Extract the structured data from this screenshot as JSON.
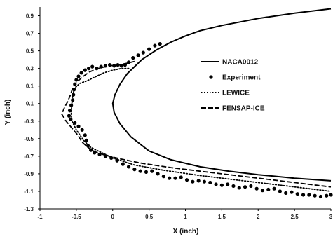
{
  "chart_data": {
    "type": "line",
    "xlabel": "X (inch)",
    "ylabel": "Y (inch)",
    "xlim": [
      -1,
      3
    ],
    "ylim": [
      -1.3,
      1.0
    ],
    "xticks": [
      "-1",
      "-0.5",
      "0",
      "0.5",
      "1",
      "1.5",
      "2",
      "2.5",
      "3"
    ],
    "yticks": [
      "0.9",
      "0.7",
      "0.5",
      "0.3",
      "0.1",
      "-0.1",
      "-0.3",
      "-0.5",
      "-0.7",
      "-0.9",
      "-1.1",
      "-1.3"
    ],
    "grid": false,
    "legend_position": "right",
    "series": [
      {
        "name": "NACA0012",
        "style": "solid",
        "color": "#000000",
        "points": [
          [
            3.0,
            0.98
          ],
          [
            2.5,
            0.93
          ],
          [
            2.0,
            0.87
          ],
          [
            1.5,
            0.79
          ],
          [
            1.2,
            0.73
          ],
          [
            1.0,
            0.67
          ],
          [
            0.8,
            0.6
          ],
          [
            0.6,
            0.51
          ],
          [
            0.4,
            0.4
          ],
          [
            0.3,
            0.32
          ],
          [
            0.2,
            0.24
          ],
          [
            0.1,
            0.12
          ],
          [
            0.03,
            0.0
          ],
          [
            0.0,
            -0.1
          ],
          [
            0.02,
            -0.2
          ],
          [
            0.1,
            -0.33
          ],
          [
            0.25,
            -0.48
          ],
          [
            0.5,
            -0.64
          ],
          [
            0.8,
            -0.74
          ],
          [
            1.2,
            -0.82
          ],
          [
            1.6,
            -0.87
          ],
          [
            2.0,
            -0.91
          ],
          [
            2.5,
            -0.95
          ],
          [
            3.0,
            -0.98
          ]
        ]
      },
      {
        "name": "Experiment",
        "style": "markers",
        "color": "#000000",
        "points": [
          [
            0.65,
            0.58
          ],
          [
            0.58,
            0.56
          ],
          [
            0.5,
            0.52
          ],
          [
            0.42,
            0.48
          ],
          [
            0.35,
            0.45
          ],
          [
            0.28,
            0.42
          ],
          [
            0.22,
            0.37
          ],
          [
            0.17,
            0.34
          ],
          [
            0.12,
            0.33
          ],
          [
            0.07,
            0.34
          ],
          [
            0.02,
            0.33
          ],
          [
            -0.04,
            0.34
          ],
          [
            -0.1,
            0.33
          ],
          [
            -0.16,
            0.32
          ],
          [
            -0.22,
            0.3
          ],
          [
            -0.28,
            0.32
          ],
          [
            -0.33,
            0.3
          ],
          [
            -0.38,
            0.28
          ],
          [
            -0.43,
            0.25
          ],
          [
            -0.47,
            0.21
          ],
          [
            -0.5,
            0.17
          ],
          [
            -0.52,
            0.12
          ],
          [
            -0.53,
            0.06
          ],
          [
            -0.54,
            0.0
          ],
          [
            -0.55,
            -0.06
          ],
          [
            -0.57,
            -0.12
          ],
          [
            -0.59,
            -0.18
          ],
          [
            -0.6,
            -0.24
          ],
          [
            -0.58,
            -0.28
          ],
          [
            -0.52,
            -0.32
          ],
          [
            -0.47,
            -0.36
          ],
          [
            -0.42,
            -0.4
          ],
          [
            -0.38,
            -0.46
          ],
          [
            -0.36,
            -0.52
          ],
          [
            -0.34,
            -0.58
          ],
          [
            -0.3,
            -0.63
          ],
          [
            -0.25,
            -0.66
          ],
          [
            -0.18,
            -0.68
          ],
          [
            -0.1,
            -0.7
          ],
          [
            -0.02,
            -0.72
          ],
          [
            0.06,
            -0.75
          ],
          [
            0.14,
            -0.79
          ],
          [
            0.22,
            -0.82
          ],
          [
            0.3,
            -0.85
          ],
          [
            0.38,
            -0.87
          ],
          [
            0.46,
            -0.88
          ],
          [
            0.54,
            -0.87
          ],
          [
            0.62,
            -0.9
          ],
          [
            0.7,
            -0.93
          ],
          [
            0.78,
            -0.95
          ],
          [
            0.86,
            -0.95
          ],
          [
            0.94,
            -0.94
          ],
          [
            1.02,
            -0.97
          ],
          [
            1.1,
            -0.99
          ],
          [
            1.18,
            -0.98
          ],
          [
            1.26,
            -0.99
          ],
          [
            1.34,
            -1.0
          ],
          [
            1.42,
            -1.02
          ],
          [
            1.5,
            -1.03
          ],
          [
            1.58,
            -1.02
          ],
          [
            1.66,
            -1.04
          ],
          [
            1.74,
            -1.06
          ],
          [
            1.82,
            -1.05
          ],
          [
            1.9,
            -1.04
          ],
          [
            1.98,
            -1.07
          ],
          [
            2.06,
            -1.09
          ],
          [
            2.14,
            -1.08
          ],
          [
            2.22,
            -1.07
          ],
          [
            2.3,
            -1.1
          ],
          [
            2.38,
            -1.12
          ],
          [
            2.46,
            -1.11
          ],
          [
            2.54,
            -1.13
          ],
          [
            2.62,
            -1.14
          ],
          [
            2.7,
            -1.14
          ],
          [
            2.78,
            -1.15
          ],
          [
            2.86,
            -1.16
          ],
          [
            2.94,
            -1.15
          ],
          [
            3.0,
            -1.14
          ]
        ]
      },
      {
        "name": "LEWICE",
        "style": "dotted",
        "color": "#000000",
        "points": [
          [
            0.22,
            0.3
          ],
          [
            0.12,
            0.3
          ],
          [
            0.0,
            0.28
          ],
          [
            -0.12,
            0.25
          ],
          [
            -0.25,
            0.2
          ],
          [
            -0.35,
            0.16
          ],
          [
            -0.45,
            0.13
          ],
          [
            -0.52,
            0.08
          ],
          [
            -0.55,
            0.0
          ],
          [
            -0.56,
            -0.1
          ],
          [
            -0.57,
            -0.2
          ],
          [
            -0.56,
            -0.3
          ],
          [
            -0.5,
            -0.4
          ],
          [
            -0.4,
            -0.52
          ],
          [
            -0.3,
            -0.6
          ],
          [
            -0.15,
            -0.66
          ],
          [
            0.0,
            -0.72
          ],
          [
            0.3,
            -0.8
          ],
          [
            0.7,
            -0.86
          ],
          [
            1.2,
            -0.92
          ],
          [
            1.7,
            -0.97
          ],
          [
            2.2,
            -1.02
          ],
          [
            2.7,
            -1.07
          ],
          [
            3.0,
            -1.1
          ]
        ]
      },
      {
        "name": "FENSAP-ICE",
        "style": "dashed",
        "color": "#000000",
        "points": [
          [
            0.3,
            0.38
          ],
          [
            0.2,
            0.36
          ],
          [
            0.08,
            0.34
          ],
          [
            -0.05,
            0.33
          ],
          [
            -0.2,
            0.3
          ],
          [
            -0.32,
            0.26
          ],
          [
            -0.42,
            0.2
          ],
          [
            -0.5,
            0.14
          ],
          [
            -0.55,
            0.08
          ],
          [
            -0.58,
            0.0
          ],
          [
            -0.62,
            -0.08
          ],
          [
            -0.66,
            -0.14
          ],
          [
            -0.7,
            -0.22
          ],
          [
            -0.64,
            -0.3
          ],
          [
            -0.56,
            -0.38
          ],
          [
            -0.48,
            -0.46
          ],
          [
            -0.42,
            -0.54
          ],
          [
            -0.34,
            -0.6
          ],
          [
            -0.24,
            -0.65
          ],
          [
            -0.1,
            -0.69
          ],
          [
            0.1,
            -0.73
          ],
          [
            0.4,
            -0.78
          ],
          [
            0.8,
            -0.83
          ],
          [
            1.2,
            -0.87
          ],
          [
            1.6,
            -0.91
          ],
          [
            2.0,
            -0.95
          ],
          [
            2.4,
            -0.99
          ],
          [
            2.8,
            -1.03
          ],
          [
            3.0,
            -1.05
          ]
        ]
      }
    ]
  }
}
